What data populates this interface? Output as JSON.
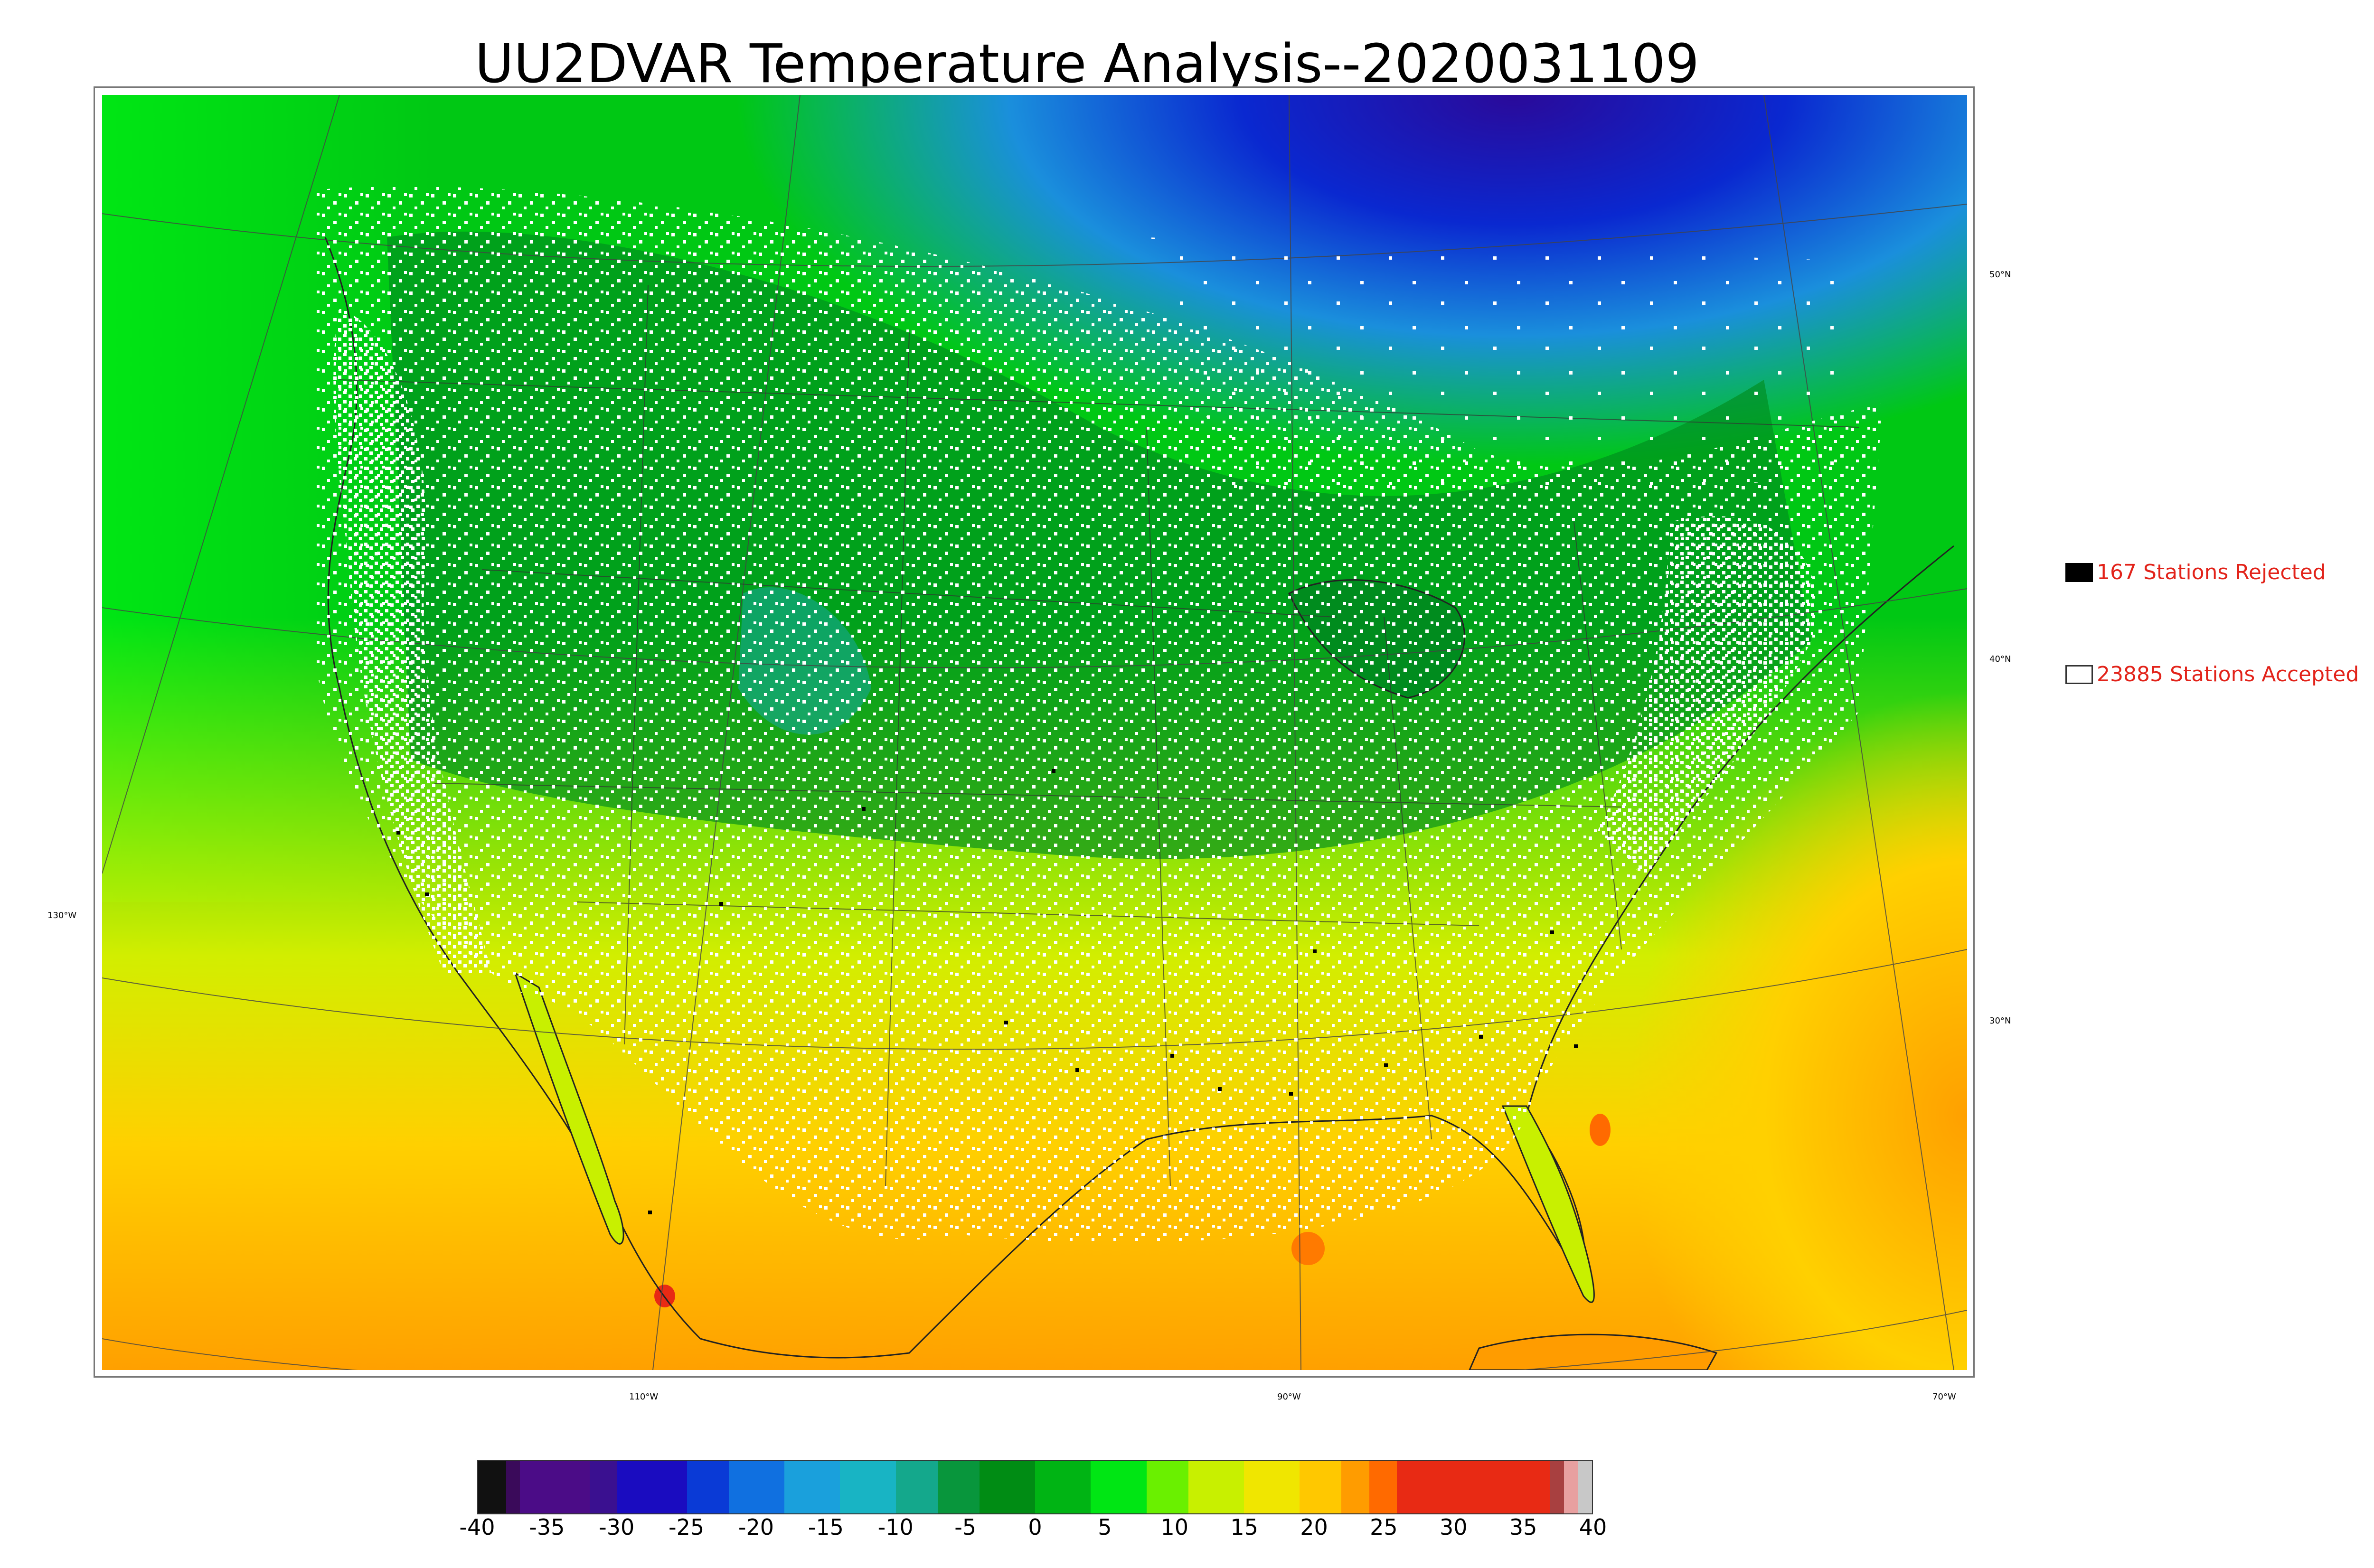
{
  "title": "UU2DVAR Temperature Analysis--2020031109",
  "legend": {
    "rejected": {
      "label": "167 Stations Rejected",
      "swatch_color": "#000000",
      "text_color": "#e2231a"
    },
    "accepted": {
      "label": "23885 Stations Accepted",
      "swatch_color": "#ffffff",
      "text_color": "#e2231a"
    }
  },
  "lat_labels": [
    "50°N",
    "40°N",
    "30°N"
  ],
  "lon_labels": [
    "130°W",
    "110°W",
    "90°W",
    "70°W"
  ],
  "colorbar": {
    "ticks": [
      "-40",
      "-35",
      "-30",
      "-25",
      "-20",
      "-15",
      "-10",
      "-5",
      "0",
      "5",
      "10",
      "15",
      "20",
      "25",
      "30",
      "35",
      "40"
    ],
    "range": [
      -40,
      40
    ],
    "stops": [
      {
        "from": -40,
        "to": -38,
        "color": "#111111"
      },
      {
        "from": -38,
        "to": -37,
        "color": "#3a0a5a"
      },
      {
        "from": -37,
        "to": -32,
        "color": "#4b0c87"
      },
      {
        "from": -32,
        "to": -30,
        "color": "#3a1090"
      },
      {
        "from": -30,
        "to": -25,
        "color": "#1a0cc0"
      },
      {
        "from": -25,
        "to": -22,
        "color": "#0a3ad6"
      },
      {
        "from": -22,
        "to": -18,
        "color": "#1070e0"
      },
      {
        "from": -18,
        "to": -14,
        "color": "#1aa0dc"
      },
      {
        "from": -14,
        "to": -10,
        "color": "#18b4c4"
      },
      {
        "from": -10,
        "to": -7,
        "color": "#14a88c"
      },
      {
        "from": -7,
        "to": -4,
        "color": "#08963c"
      },
      {
        "from": -4,
        "to": 0,
        "color": "#008c14"
      },
      {
        "from": 0,
        "to": 4,
        "color": "#00b414"
      },
      {
        "from": 4,
        "to": 8,
        "color": "#00e614"
      },
      {
        "from": 8,
        "to": 11,
        "color": "#6af000"
      },
      {
        "from": 11,
        "to": 15,
        "color": "#c8f000"
      },
      {
        "from": 15,
        "to": 19,
        "color": "#f0e600"
      },
      {
        "from": 19,
        "to": 22,
        "color": "#ffc800"
      },
      {
        "from": 22,
        "to": 24,
        "color": "#ff9c00"
      },
      {
        "from": 24,
        "to": 26,
        "color": "#ff6a00"
      },
      {
        "from": 26,
        "to": 37,
        "color": "#e82a14"
      },
      {
        "from": 37,
        "to": 38,
        "color": "#a84040"
      },
      {
        "from": 38,
        "to": 39,
        "color": "#e8a0a0"
      },
      {
        "from": 39,
        "to": 40,
        "color": "#c8c8c8"
      }
    ]
  },
  "colors": {
    "ocean_warm": "#ffb400",
    "ocean_mid": "#d2f000",
    "land_cool": "#00c814",
    "land_cold": "#008c1e",
    "canada_cold": "#1aa0dc",
    "arctic": "#1010d0",
    "station_accepted": "#ffffff",
    "station_rejected": "#000000"
  }
}
